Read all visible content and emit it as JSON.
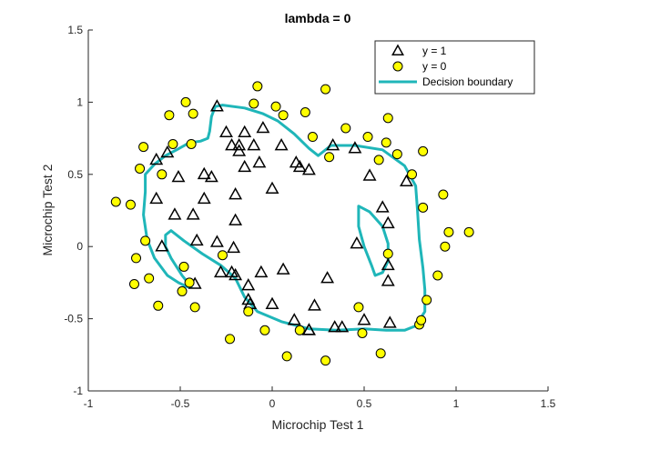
{
  "chart_data": {
    "type": "scatter",
    "title": "lambda = 0",
    "xlabel": "Microchip Test 1",
    "ylabel": "Microchip Test 2",
    "xlim": [
      -1,
      1.5
    ],
    "ylim": [
      -1,
      1.5
    ],
    "xticks": [
      -1,
      -0.5,
      0,
      0.5,
      1,
      1.5
    ],
    "xtick_labels": [
      "-1",
      "-0.5",
      "0",
      "0.5",
      "1",
      "1.5"
    ],
    "yticks": [
      -1,
      -0.5,
      0,
      0.5,
      1,
      1.5
    ],
    "ytick_labels": [
      "-1",
      "-0.5",
      "0",
      "0.5",
      "1",
      "1.5"
    ],
    "grid": false,
    "legend_position": "top-right",
    "series": [
      {
        "name": "y = 1",
        "marker": "triangle",
        "color": "#000000",
        "fill": "none",
        "points": [
          [
            -0.3,
            0.97
          ],
          [
            -0.25,
            0.79
          ],
          [
            -0.15,
            0.79
          ],
          [
            -0.05,
            0.82
          ],
          [
            0.05,
            0.7
          ],
          [
            -0.22,
            0.7
          ],
          [
            -0.18,
            0.66
          ],
          [
            -0.18,
            0.7
          ],
          [
            -0.1,
            0.7
          ],
          [
            -0.07,
            0.58
          ],
          [
            -0.15,
            0.55
          ],
          [
            -0.33,
            0.48
          ],
          [
            -0.37,
            0.5
          ],
          [
            -0.51,
            0.48
          ],
          [
            -0.57,
            0.65
          ],
          [
            -0.63,
            0.6
          ],
          [
            -0.63,
            0.33
          ],
          [
            -0.53,
            0.22
          ],
          [
            -0.43,
            0.22
          ],
          [
            -0.37,
            0.33
          ],
          [
            -0.2,
            0.36
          ],
          [
            -0.2,
            0.18
          ],
          [
            0.0,
            0.4
          ],
          [
            0.13,
            0.58
          ],
          [
            0.15,
            0.55
          ],
          [
            0.2,
            0.53
          ],
          [
            0.33,
            0.7
          ],
          [
            0.45,
            0.68
          ],
          [
            0.53,
            0.49
          ],
          [
            0.6,
            0.27
          ],
          [
            0.63,
            0.16
          ],
          [
            0.73,
            0.45
          ],
          [
            -0.6,
            0.0
          ],
          [
            -0.41,
            0.04
          ],
          [
            -0.3,
            0.03
          ],
          [
            -0.21,
            -0.01
          ],
          [
            -0.28,
            -0.18
          ],
          [
            -0.22,
            -0.18
          ],
          [
            -0.2,
            -0.2
          ],
          [
            -0.13,
            -0.27
          ],
          [
            -0.13,
            -0.37
          ],
          [
            -0.12,
            -0.4
          ],
          [
            -0.06,
            -0.18
          ],
          [
            0.06,
            -0.16
          ],
          [
            0.23,
            -0.41
          ],
          [
            0.3,
            -0.22
          ],
          [
            0.12,
            -0.51
          ],
          [
            0.2,
            -0.58
          ],
          [
            0.38,
            -0.56
          ],
          [
            0.5,
            -0.51
          ],
          [
            0.0,
            -0.4
          ],
          [
            0.46,
            0.02
          ],
          [
            0.63,
            -0.13
          ],
          [
            0.63,
            -0.24
          ],
          [
            0.64,
            -0.53
          ],
          [
            -0.42,
            -0.26
          ],
          [
            0.34,
            -0.56
          ],
          [
            0.2,
            -0.58
          ]
        ]
      },
      {
        "name": "y = 0",
        "marker": "circle",
        "color": "#000000",
        "fill": "#ffff00",
        "points": [
          [
            -0.08,
            1.11
          ],
          [
            -0.1,
            0.99
          ],
          [
            -0.47,
            1.0
          ],
          [
            -0.43,
            0.92
          ],
          [
            -0.56,
            0.91
          ],
          [
            0.02,
            0.97
          ],
          [
            0.06,
            0.91
          ],
          [
            0.18,
            0.93
          ],
          [
            0.29,
            1.09
          ],
          [
            -0.44,
            0.71
          ],
          [
            -0.54,
            0.71
          ],
          [
            -0.7,
            0.69
          ],
          [
            -0.72,
            0.54
          ],
          [
            -0.6,
            0.5
          ],
          [
            -0.85,
            0.31
          ],
          [
            -0.77,
            0.29
          ],
          [
            -0.69,
            0.04
          ],
          [
            -0.74,
            -0.08
          ],
          [
            -0.67,
            -0.22
          ],
          [
            -0.75,
            -0.26
          ],
          [
            -0.62,
            -0.41
          ],
          [
            -0.49,
            -0.31
          ],
          [
            -0.48,
            -0.14
          ],
          [
            -0.45,
            -0.25
          ],
          [
            -0.42,
            -0.42
          ],
          [
            -0.23,
            -0.64
          ],
          [
            -0.27,
            -0.06
          ],
          [
            -0.13,
            -0.45
          ],
          [
            -0.04,
            -0.58
          ],
          [
            0.15,
            -0.58
          ],
          [
            0.08,
            -0.76
          ],
          [
            0.29,
            -0.79
          ],
          [
            0.49,
            -0.6
          ],
          [
            0.47,
            -0.42
          ],
          [
            0.59,
            -0.74
          ],
          [
            0.63,
            -0.05
          ],
          [
            0.8,
            -0.54
          ],
          [
            0.81,
            -0.51
          ],
          [
            0.84,
            -0.37
          ],
          [
            0.9,
            -0.2
          ],
          [
            0.94,
            0.0
          ],
          [
            1.07,
            0.1
          ],
          [
            0.96,
            0.1
          ],
          [
            0.93,
            0.36
          ],
          [
            0.82,
            0.27
          ],
          [
            0.76,
            0.5
          ],
          [
            0.82,
            0.66
          ],
          [
            0.68,
            0.64
          ],
          [
            0.62,
            0.72
          ],
          [
            0.52,
            0.76
          ],
          [
            0.63,
            0.89
          ],
          [
            0.31,
            0.62
          ],
          [
            0.4,
            0.82
          ],
          [
            0.22,
            0.76
          ],
          [
            0.58,
            0.6
          ]
        ]
      },
      {
        "name": "Decision boundary",
        "type": "contour",
        "color": "#1fb6b9",
        "curves": [
          [
            [
              -0.27,
              0.98
            ],
            [
              -0.31,
              0.97
            ],
            [
              -0.33,
              0.9
            ],
            [
              -0.34,
              0.8
            ],
            [
              -0.35,
              0.75
            ],
            [
              -0.39,
              0.73
            ],
            [
              -0.45,
              0.72
            ],
            [
              -0.52,
              0.67
            ],
            [
              -0.58,
              0.63
            ],
            [
              -0.64,
              0.57
            ],
            [
              -0.69,
              0.5
            ],
            [
              -0.69,
              0.38
            ],
            [
              -0.7,
              0.22
            ],
            [
              -0.68,
              0.05
            ],
            [
              -0.64,
              -0.08
            ],
            [
              -0.57,
              -0.2
            ],
            [
              -0.51,
              -0.25
            ],
            [
              -0.46,
              -0.28
            ],
            [
              -0.44,
              -0.28
            ],
            [
              -0.49,
              -0.2
            ],
            [
              -0.55,
              -0.08
            ],
            [
              -0.58,
              0.0
            ],
            [
              -0.58,
              0.08
            ],
            [
              -0.55,
              0.11
            ],
            [
              -0.48,
              0.04
            ],
            [
              -0.38,
              -0.05
            ],
            [
              -0.28,
              -0.13
            ],
            [
              -0.2,
              -0.22
            ],
            [
              -0.15,
              -0.35
            ],
            [
              -0.08,
              -0.45
            ],
            [
              0.05,
              -0.52
            ],
            [
              0.2,
              -0.57
            ],
            [
              0.35,
              -0.58
            ],
            [
              0.5,
              -0.57
            ],
            [
              0.62,
              -0.58
            ],
            [
              0.72,
              -0.58
            ],
            [
              0.78,
              -0.55
            ],
            [
              0.83,
              -0.45
            ],
            [
              0.83,
              -0.3
            ],
            [
              0.82,
              -0.15
            ],
            [
              0.8,
              0.05
            ],
            [
              0.79,
              0.25
            ],
            [
              0.78,
              0.42
            ],
            [
              0.72,
              0.56
            ],
            [
              0.6,
              0.67
            ],
            [
              0.45,
              0.7
            ],
            [
              0.32,
              0.7
            ],
            [
              0.25,
              0.63
            ],
            [
              0.2,
              0.68
            ],
            [
              0.12,
              0.78
            ],
            [
              0.03,
              0.87
            ],
            [
              -0.05,
              0.92
            ],
            [
              -0.15,
              0.96
            ],
            [
              -0.27,
              0.98
            ]
          ],
          [
            [
              0.47,
              0.28
            ],
            [
              0.53,
              0.24
            ],
            [
              0.6,
              0.14
            ],
            [
              0.63,
              0.02
            ],
            [
              0.63,
              -0.1
            ],
            [
              0.6,
              -0.18
            ],
            [
              0.56,
              -0.2
            ],
            [
              0.54,
              -0.13
            ],
            [
              0.5,
              0.0
            ],
            [
              0.47,
              0.14
            ],
            [
              0.47,
              0.28
            ]
          ]
        ]
      }
    ],
    "legend": {
      "entries": [
        "y = 1",
        "y = 0",
        "Decision boundary"
      ]
    }
  }
}
